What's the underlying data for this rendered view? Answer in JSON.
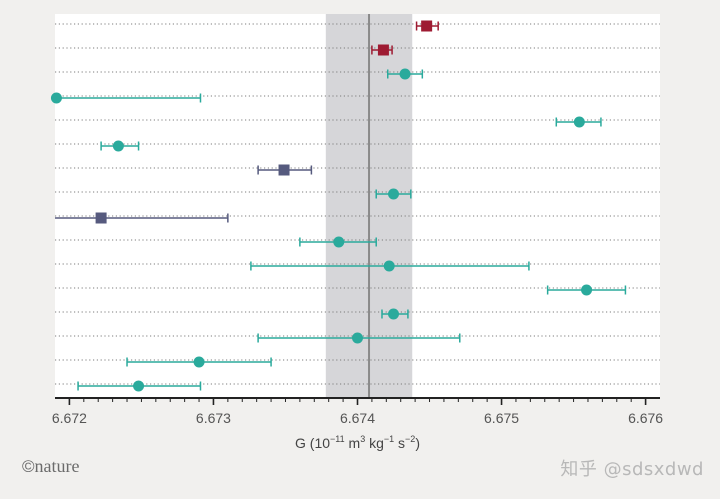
{
  "chart_data": {
    "type": "scatter",
    "title": "",
    "xlabel_main": "G (10",
    "xlabel_exp1": "−11",
    "xlabel_mid": " m",
    "xlabel_exp2": "3",
    "xlabel_kg": " kg",
    "xlabel_exp3": "−1",
    "xlabel_s": " s",
    "xlabel_exp4": "−2",
    "xlabel_end": ")",
    "xlim": [
      6.6719,
      6.6761
    ],
    "x_ticks": [
      6.672,
      6.673,
      6.674,
      6.675,
      6.676
    ],
    "x_tick_labels": [
      "6.672",
      "6.673",
      "6.674",
      "6.675",
      "6.676"
    ],
    "reference_value": 6.67408,
    "shaded_band": [
      6.67378,
      6.67438
    ],
    "row_count": 16,
    "grid": "horizontal dotted",
    "points": [
      {
        "value": 6.67448,
        "err_low": 6.67441,
        "err_high": 6.67456,
        "marker": "square",
        "color": "#9e1b32"
      },
      {
        "value": 6.67418,
        "err_low": 6.6741,
        "err_high": 6.67424,
        "marker": "square",
        "color": "#9e1b32"
      },
      {
        "value": 6.67433,
        "err_low": 6.67421,
        "err_high": 6.67445,
        "marker": "circle",
        "color": "#2aaa9c"
      },
      {
        "value": 6.67191,
        "err_low": 6.67191,
        "err_high": 6.67291,
        "marker": "circle",
        "color": "#2aaa9c"
      },
      {
        "value": 6.67554,
        "err_low": 6.67538,
        "err_high": 6.67569,
        "marker": "circle",
        "color": "#2aaa9c"
      },
      {
        "value": 6.67234,
        "err_low": 6.67222,
        "err_high": 6.67248,
        "marker": "circle",
        "color": "#2aaa9c"
      },
      {
        "value": 6.67349,
        "err_low": 6.67331,
        "err_high": 6.67368,
        "marker": "square",
        "color": "#565a7e"
      },
      {
        "value": 6.67425,
        "err_low": 6.67413,
        "err_high": 6.67437,
        "marker": "circle",
        "color": "#2aaa9c"
      },
      {
        "value": 6.67222,
        "err_low": 6.6719,
        "err_high": 6.6731,
        "marker": "square",
        "color": "#565a7e"
      },
      {
        "value": 6.67387,
        "err_low": 6.6736,
        "err_high": 6.67413,
        "marker": "circle",
        "color": "#2aaa9c"
      },
      {
        "value": 6.67422,
        "err_low": 6.67326,
        "err_high": 6.67519,
        "marker": "circle",
        "color": "#2aaa9c"
      },
      {
        "value": 6.67559,
        "err_low": 6.67532,
        "err_high": 6.67586,
        "marker": "circle",
        "color": "#2aaa9c"
      },
      {
        "value": 6.67425,
        "err_low": 6.67417,
        "err_high": 6.67435,
        "marker": "circle",
        "color": "#2aaa9c"
      },
      {
        "value": 6.674,
        "err_low": 6.67331,
        "err_high": 6.67471,
        "marker": "circle",
        "color": "#2aaa9c"
      },
      {
        "value": 6.6729,
        "err_low": 6.6724,
        "err_high": 6.6734,
        "marker": "circle",
        "color": "#2aaa9c"
      },
      {
        "value": 6.67248,
        "err_low": 6.67206,
        "err_high": 6.67291,
        "marker": "circle",
        "color": "#2aaa9c"
      }
    ]
  },
  "colors": {
    "teal": "#2aaa9c",
    "crimson": "#9e1b32",
    "slate": "#565a7e",
    "band": "#d6d6d9",
    "reference_line": "#8a8a8a",
    "plot_background": "#ffffff"
  },
  "credit": {
    "symbol": "©",
    "brand": "nature"
  },
  "watermark": "知乎 @sdsxdwd"
}
